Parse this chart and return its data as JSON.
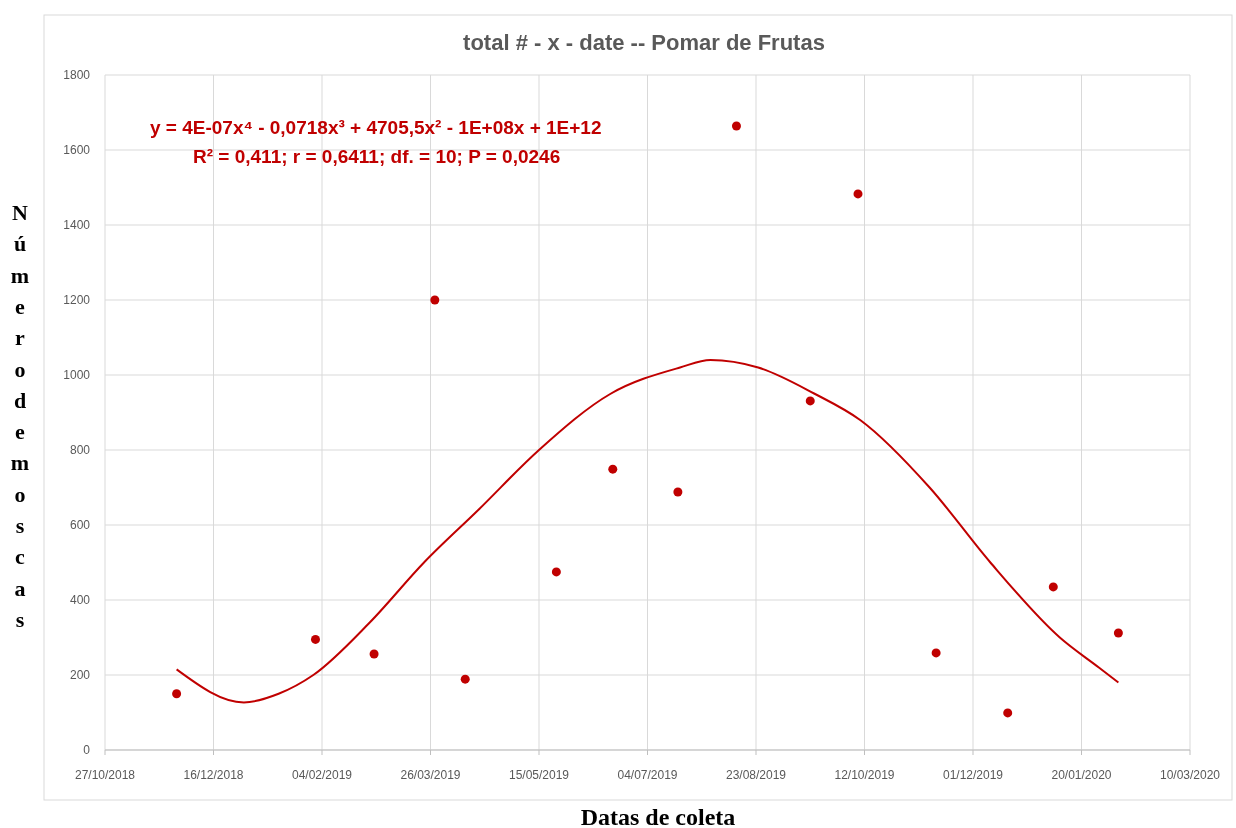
{
  "chart_data": {
    "type": "scatter",
    "title": "total # - x - date -- Pomar de Frutas",
    "xlabel": "Datas de coleta",
    "ylabel": "Número de moscas",
    "xlim": [
      "2018-10-27",
      "2020-03-10"
    ],
    "xticks": [
      {
        "value": "2018-10-27",
        "label": "27/10/2018"
      },
      {
        "value": "2018-12-16",
        "label": "16/12/2018"
      },
      {
        "value": "2019-02-04",
        "label": "04/02/2019"
      },
      {
        "value": "2019-03-26",
        "label": "26/03/2019"
      },
      {
        "value": "2019-05-15",
        "label": "15/05/2019"
      },
      {
        "value": "2019-07-04",
        "label": "04/07/2019"
      },
      {
        "value": "2019-08-23",
        "label": "23/08/2019"
      },
      {
        "value": "2019-10-12",
        "label": "12/10/2019"
      },
      {
        "value": "2019-12-01",
        "label": "01/12/2019"
      },
      {
        "value": "2020-01-20",
        "label": "20/01/2020"
      },
      {
        "value": "2020-03-10",
        "label": "10/03/2020"
      }
    ],
    "ylim": [
      0,
      1800
    ],
    "yticks": [
      0,
      200,
      400,
      600,
      800,
      1000,
      1200,
      1400,
      1600,
      1800
    ],
    "grid": true,
    "annotations": [
      "y = 4E-07x⁴ - 0,0718x³ + 4705,5x² - 1E+08x + 1E+12",
      "R² = 0,411; r = 0,6411; df. = 10; P = 0,0246"
    ],
    "series": [
      {
        "color": "#c00000",
        "marker": "circle",
        "x": [
          "2018-11-29",
          "2019-02-01",
          "2019-02-28",
          "2019-03-28",
          "2019-04-11",
          "2019-05-23",
          "2019-06-18",
          "2019-07-18",
          "2019-08-14",
          "2019-09-17",
          "2019-10-09",
          "2019-11-14",
          "2019-12-17",
          "2020-01-07",
          "2020-02-06"
        ],
        "values": [
          150,
          295,
          256,
          1200,
          189,
          475,
          749,
          688,
          1664,
          931,
          1483,
          259,
          99,
          435,
          312
        ]
      },
      {
        "type": "line",
        "color": "#c00000",
        "marker": "none",
        "line_style": "solid",
        "x": [
          "2018-11-29",
          "2018-12-30",
          "2019-01-15",
          "2019-01-31",
          "2019-02-26",
          "2019-03-23",
          "2019-04-17",
          "2019-05-15",
          "2019-06-17",
          "2019-07-19",
          "2019-08-02",
          "2019-08-24",
          "2019-09-19",
          "2019-10-10",
          "2019-11-11",
          "2019-12-09",
          "2020-01-10",
          "2020-01-28",
          "2020-02-06"
        ],
        "values": [
          215,
          127,
          150,
          200,
          340,
          500,
          640,
          800,
          950,
          1020,
          1040,
          1020,
          950,
          880,
          700,
          500,
          300,
          220,
          180
        ]
      }
    ]
  }
}
